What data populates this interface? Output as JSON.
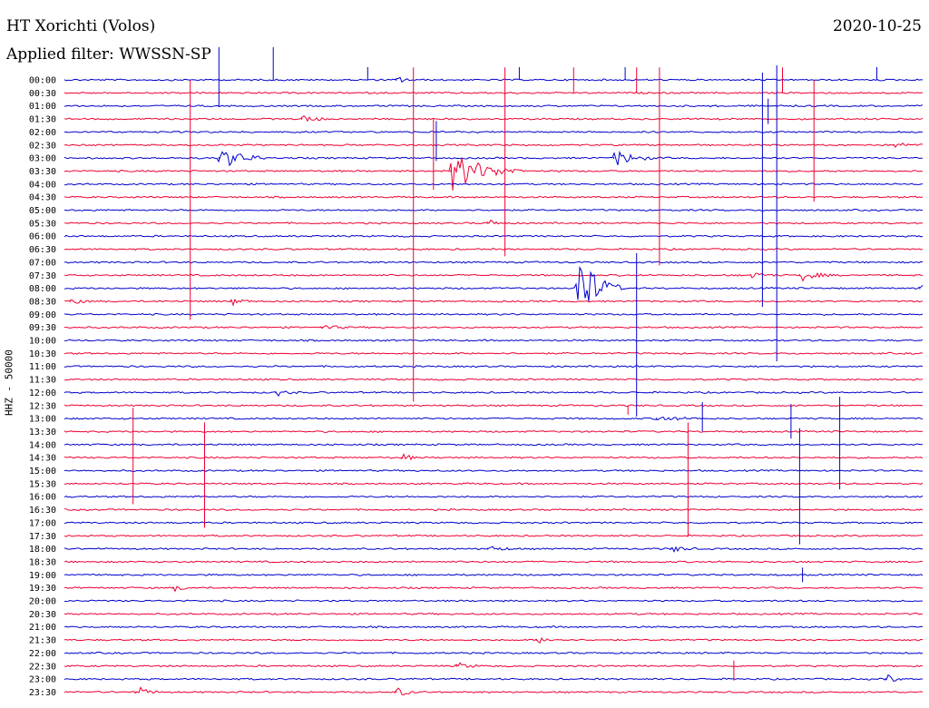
{
  "header": {
    "station": "HT Xorichti (Volos)",
    "date": "2020-10-25",
    "filter": "Applied filter: WWSSN-SP"
  },
  "chart_data": {
    "type": "line",
    "channel_label": "HHZ - 50000",
    "time_labels": [
      "00:00",
      "00:30",
      "01:00",
      "01:30",
      "02:00",
      "02:30",
      "03:00",
      "03:30",
      "04:00",
      "04:30",
      "05:00",
      "05:30",
      "06:00",
      "06:30",
      "07:00",
      "07:30",
      "08:00",
      "08:30",
      "09:00",
      "09:30",
      "10:00",
      "10:30",
      "11:00",
      "11:30",
      "12:00",
      "12:30",
      "13:00",
      "13:30",
      "14:00",
      "14:30",
      "15:00",
      "15:30",
      "16:00",
      "16:30",
      "17:00",
      "17:30",
      "18:00",
      "18:30",
      "19:00",
      "19:30",
      "20:00",
      "20:30",
      "21:00",
      "21:30",
      "22:00",
      "22:30",
      "23:00",
      "23:30"
    ],
    "minutes_per_line": 30,
    "colors": [
      "#0000cc",
      "#ee0033"
    ],
    "events": [
      {
        "line": 6,
        "minute": 5.4,
        "amplitude": 12,
        "duration": 1.8
      },
      {
        "line": 7,
        "minute": 13.5,
        "amplitude": 22,
        "duration": 2.6
      },
      {
        "line": 6,
        "minute": 19.2,
        "amplitude": 9,
        "duration": 1.5
      },
      {
        "line": 16,
        "minute": 17.9,
        "amplitude": 40,
        "duration": 1.6
      },
      {
        "line": 15,
        "minute": 25.7,
        "amplitude": 6,
        "duration": 1.2
      },
      {
        "line": 15,
        "minute": 24.0,
        "amplitude": 3,
        "duration": 1.0
      },
      {
        "line": 3,
        "minute": 8.3,
        "amplitude": 4,
        "duration": 1.0
      },
      {
        "line": 5,
        "minute": 29.0,
        "amplitude": 3,
        "duration": 1.0
      },
      {
        "line": 17,
        "minute": 5.8,
        "amplitude": 4,
        "duration": 0.8
      },
      {
        "line": 17,
        "minute": 0.2,
        "amplitude": 3,
        "duration": 0.8
      },
      {
        "line": 11,
        "minute": 14.8,
        "amplitude": 3,
        "duration": 0.8
      },
      {
        "line": 24,
        "minute": 7.4,
        "amplitude": 3,
        "duration": 0.8
      },
      {
        "line": 26,
        "minute": 20.7,
        "amplitude": 3,
        "duration": 1.6
      },
      {
        "line": 29,
        "minute": 11.8,
        "amplitude": 4,
        "duration": 0.6
      },
      {
        "line": 36,
        "minute": 14.8,
        "amplitude": 3,
        "duration": 1.0
      },
      {
        "line": 36,
        "minute": 21.2,
        "amplitude": 3,
        "duration": 1.0
      },
      {
        "line": 47,
        "minute": 2.5,
        "amplitude": 6,
        "duration": 0.8
      },
      {
        "line": 47,
        "minute": 11.6,
        "amplitude": 5,
        "duration": 0.8
      },
      {
        "line": 46,
        "minute": 28.7,
        "amplitude": 5,
        "duration": 0.6
      },
      {
        "line": 0,
        "minute": 11.6,
        "amplitude": 3,
        "duration": 0.8
      },
      {
        "line": 19,
        "minute": 9.0,
        "amplitude": 3,
        "duration": 1.0
      },
      {
        "line": 39,
        "minute": 3.8,
        "amplitude": 3,
        "duration": 0.8
      },
      {
        "line": 43,
        "minute": 16.5,
        "amplitude": 3,
        "duration": 1.0
      },
      {
        "line": 45,
        "minute": 13.7,
        "amplitude": 3,
        "duration": 1.0
      },
      {
        "line": 16,
        "minute": 29.9,
        "amplitude": 3,
        "duration": 1.2
      }
    ],
    "spikes": [
      {
        "line": 0,
        "minute": 5.4,
        "up": 36,
        "down": 30
      },
      {
        "line": 0,
        "minute": 7.3,
        "up": 36,
        "down": 0
      },
      {
        "line": 0,
        "minute": 10.6,
        "up": 14,
        "down": 0
      },
      {
        "line": 0,
        "minute": 15.9,
        "up": 14,
        "down": 0
      },
      {
        "line": 0,
        "minute": 19.6,
        "up": 14,
        "down": 0
      },
      {
        "line": 0,
        "minute": 28.4,
        "up": 14,
        "down": 0
      },
      {
        "line": 0,
        "minute": 24.4,
        "up": 8,
        "down": 250
      },
      {
        "line": 0,
        "minute": 24.9,
        "up": 16,
        "down": 310
      },
      {
        "line": 1,
        "minute": 12.2,
        "up": 28,
        "down": 340
      },
      {
        "line": 1,
        "minute": 15.4,
        "up": 28,
        "down": 180
      },
      {
        "line": 1,
        "minute": 17.8,
        "up": 28,
        "down": 0
      },
      {
        "line": 1,
        "minute": 20.0,
        "up": 28,
        "down": 0
      },
      {
        "line": 1,
        "minute": 20.8,
        "up": 28,
        "down": 190
      },
      {
        "line": 1,
        "minute": 25.1,
        "up": 28,
        "down": 0
      },
      {
        "line": 1,
        "minute": 26.2,
        "up": 14,
        "down": 120
      },
      {
        "line": 1,
        "minute": 4.4,
        "up": 14,
        "down": 250
      },
      {
        "line": 2,
        "minute": 24.6,
        "up": 8,
        "down": 20
      },
      {
        "line": 3,
        "minute": 12.9,
        "up": 0,
        "down": 78
      },
      {
        "line": 4,
        "minute": 13.0,
        "up": 12,
        "down": 32
      },
      {
        "line": 14,
        "minute": 20.0,
        "up": 10,
        "down": 170
      },
      {
        "line": 25,
        "minute": 19.7,
        "up": 0,
        "down": 10
      },
      {
        "line": 26,
        "minute": 22.3,
        "up": 18,
        "down": 14
      },
      {
        "line": 26,
        "minute": 25.4,
        "up": 16,
        "down": 22
      },
      {
        "line": 26,
        "minute": 27.1,
        "up": 24,
        "down": 78
      },
      {
        "line": 27,
        "minute": 2.4,
        "up": 26,
        "down": 80
      },
      {
        "line": 27,
        "minute": 4.9,
        "up": 10,
        "down": 106
      },
      {
        "line": 27,
        "minute": 21.8,
        "up": 10,
        "down": 116
      },
      {
        "line": 28,
        "minute": 25.7,
        "up": 18,
        "down": 110
      },
      {
        "line": 38,
        "minute": 25.8,
        "up": 8,
        "down": 8
      },
      {
        "line": 45,
        "minute": 23.4,
        "up": 6,
        "down": 16
      }
    ]
  }
}
